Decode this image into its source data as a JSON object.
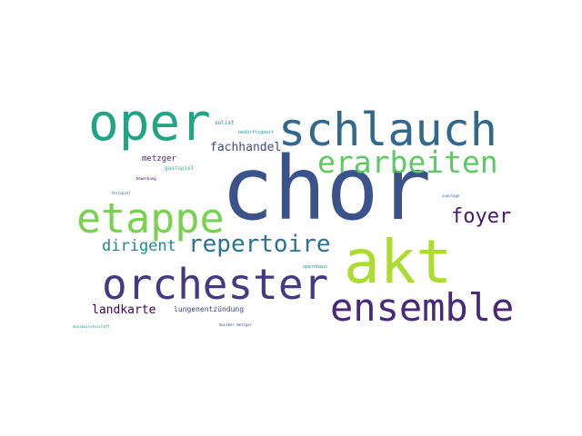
{
  "words": [
    {
      "key": "chor",
      "text": "chor",
      "color": "#3b528b"
    },
    {
      "key": "akt",
      "text": "akt",
      "color": "#addc30"
    },
    {
      "key": "oper",
      "text": "oper",
      "color": "#21a585"
    },
    {
      "key": "schlauch",
      "text": "schlauch",
      "color": "#31688e"
    },
    {
      "key": "etappe",
      "text": "etappe",
      "color": "#7ad151"
    },
    {
      "key": "orchester",
      "text": "orchester",
      "color": "#443983"
    },
    {
      "key": "ensemble",
      "text": "ensemble",
      "color": "#482878"
    },
    {
      "key": "erarbeiten",
      "text": "erarbeiten",
      "color": "#5ec962"
    },
    {
      "key": "repertoire",
      "text": "repertoire",
      "color": "#2c728e"
    },
    {
      "key": "foyer",
      "text": "foyer",
      "color": "#48186a"
    },
    {
      "key": "dirigent",
      "text": "dirigent",
      "color": "#25858e"
    },
    {
      "key": "fachhandel",
      "text": "fachhandel",
      "color": "#3e4a89"
    },
    {
      "key": "landkarte",
      "text": "landkarte",
      "color": "#440154"
    },
    {
      "key": "metzger",
      "text": "metzger",
      "color": "#472d7b"
    },
    {
      "key": "lungen",
      "text": "lungenentzündung",
      "color": "#3e4989"
    },
    {
      "key": "gastspiel",
      "text": "gastspiel",
      "color": "#35b779"
    },
    {
      "key": "solist",
      "text": "solist",
      "color": "#26828e"
    },
    {
      "key": "beduerftig",
      "text": "bedürftigkeit",
      "color": "#1fa187"
    },
    {
      "key": "opernhaus",
      "text": "opernhaus",
      "color": "#21918c"
    },
    {
      "key": "bewerbung",
      "text": "bewerbung",
      "color": "#440154"
    },
    {
      "key": "festspiel",
      "text": "festspiel",
      "color": "#31688e"
    },
    {
      "key": "vuanlage",
      "text": "vuanlage",
      "color": "#39568c"
    },
    {
      "key": "musikwiss",
      "text": "musikwissenschaft",
      "color": "#1f9e89"
    },
    {
      "key": "musiker",
      "text": "musiker metzger",
      "color": "#3b528b"
    }
  ]
}
